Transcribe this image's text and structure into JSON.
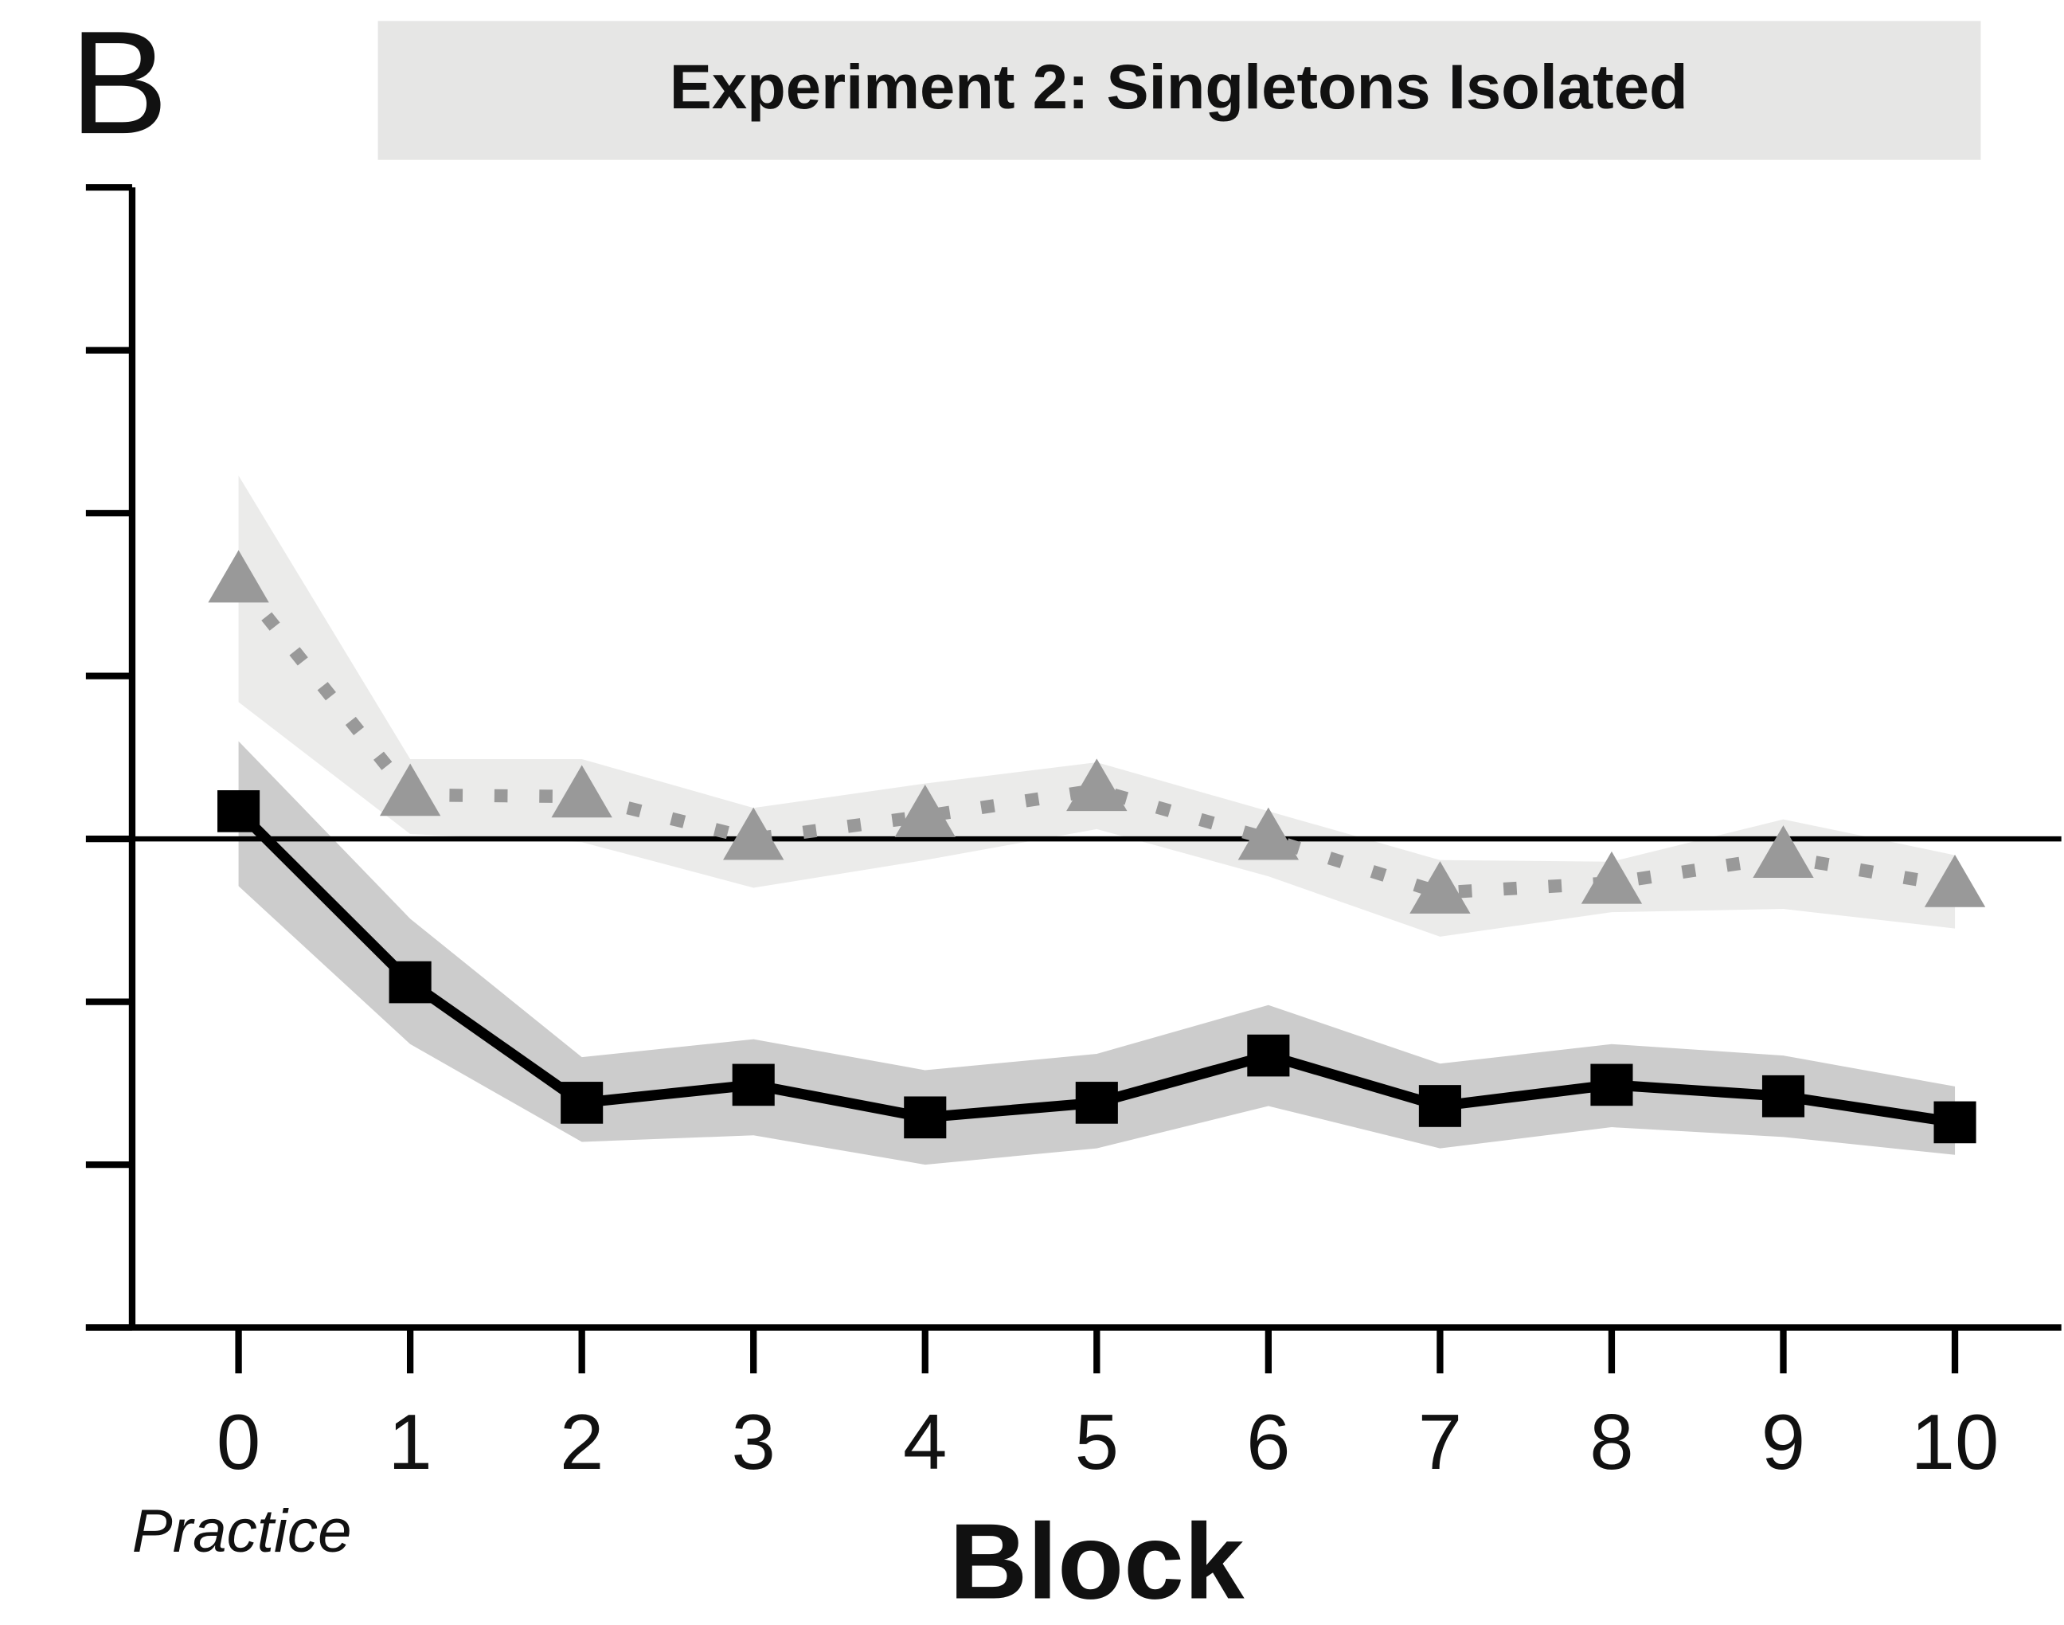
{
  "chart_data": {
    "type": "line",
    "panel_label": "B",
    "title": "Experiment 2: Singletons Isolated",
    "x_label": "Block",
    "annotation": "Practice",
    "x": [
      0,
      1,
      2,
      3,
      4,
      5,
      6,
      7,
      8,
      9,
      10
    ],
    "xlim": [
      -0.62,
      10.62
    ],
    "xticks": [
      0,
      1,
      2,
      3,
      4,
      5,
      6,
      7,
      8,
      9,
      10
    ],
    "ylim": [
      -3,
      4
    ],
    "yticks": [
      -3,
      -2,
      -1,
      0,
      1,
      2,
      3,
      4
    ],
    "hline": 0,
    "series": [
      {
        "color": "#999999",
        "band_color": "#ebebea",
        "marker": "triangle",
        "style": "dotted",
        "values": [
          1.58,
          0.27,
          0.26,
          0,
          0.14,
          0.3,
          0,
          -0.33,
          -0.27,
          -0.11,
          -0.29
        ],
        "upper": [
          2.23,
          0.49,
          0.49,
          0.19,
          0.34,
          0.47,
          0.17,
          -0.13,
          -0.14,
          0.12,
          -0.1
        ],
        "lower": [
          0.84,
          0.03,
          -0.02,
          -0.3,
          -0.13,
          0.06,
          -0.23,
          -0.6,
          -0.45,
          -0.43,
          -0.55
        ]
      },
      {
        "color": "#000000",
        "band_color": "#cccccc",
        "marker": "square",
        "style": "solid",
        "values": [
          0.17,
          -0.88,
          -1.62,
          -1.51,
          -1.71,
          -1.62,
          -1.33,
          -1.64,
          -1.51,
          -1.58,
          -1.74
        ],
        "upper": [
          0.6,
          -0.49,
          -1.34,
          -1.23,
          -1.42,
          -1.32,
          -1.02,
          -1.38,
          -1.26,
          -1.33,
          -1.52
        ],
        "lower": [
          -0.29,
          -1.26,
          -1.86,
          -1.82,
          -2.0,
          -1.9,
          -1.64,
          -1.9,
          -1.77,
          -1.83,
          -1.94
        ]
      }
    ]
  }
}
